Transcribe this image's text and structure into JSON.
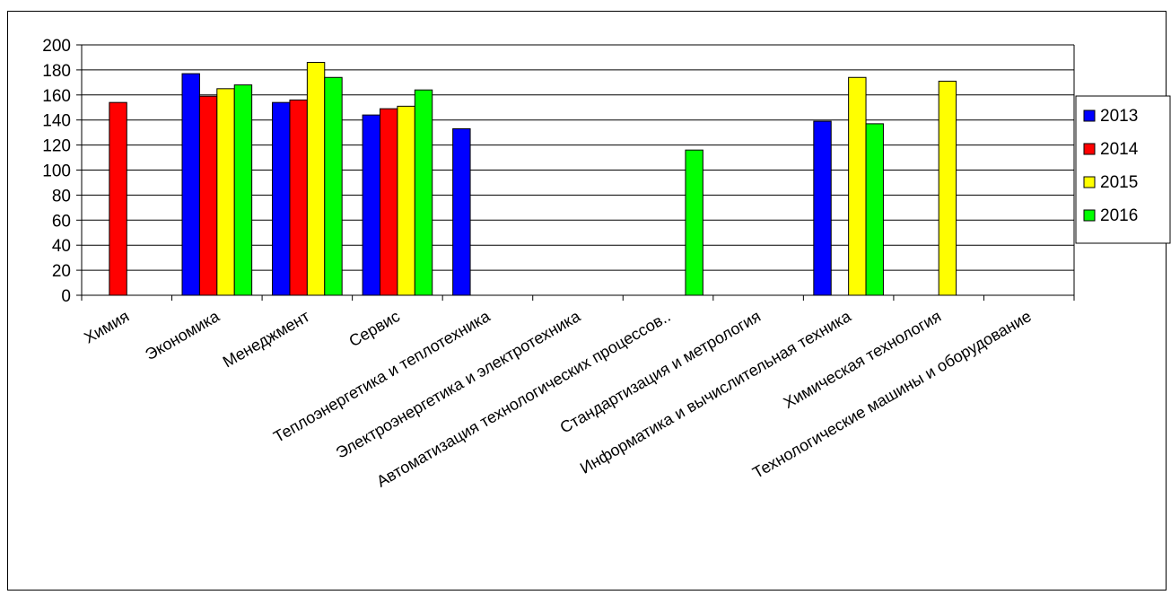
{
  "chart_data": {
    "type": "bar",
    "categories": [
      "Химия",
      "Экономика",
      "Менеджмент",
      "Сервис",
      "Теплоэнергетика и теплотехника",
      "Электроэнергетика и электротехника",
      "Автоматизация технологических процессов..",
      "Стандартизация и метрология",
      "Информатика и вычислительная техника",
      "Химическая технология",
      "Технологические машины и оборудование"
    ],
    "series": [
      {
        "name": "2013",
        "color": "#0000ff",
        "values": [
          null,
          177,
          154,
          144,
          133,
          null,
          null,
          null,
          139,
          null,
          null
        ]
      },
      {
        "name": "2014",
        "color": "#ff0000",
        "values": [
          154,
          159,
          156,
          149,
          null,
          null,
          null,
          null,
          null,
          null,
          null
        ]
      },
      {
        "name": "2015",
        "color": "#ffff00",
        "values": [
          null,
          165,
          186,
          151,
          null,
          null,
          null,
          null,
          174,
          171,
          null
        ]
      },
      {
        "name": "2016",
        "color": "#00ff00",
        "values": [
          null,
          168,
          174,
          164,
          null,
          null,
          116,
          null,
          137,
          null,
          null
        ]
      }
    ],
    "ylim": [
      0,
      200
    ],
    "yticks": [
      "0",
      "20",
      "40",
      "60",
      "80",
      "100",
      "120",
      "140",
      "160",
      "180",
      "200"
    ],
    "grid": true,
    "legend": "right",
    "title": "",
    "xlabel": "",
    "ylabel": ""
  }
}
